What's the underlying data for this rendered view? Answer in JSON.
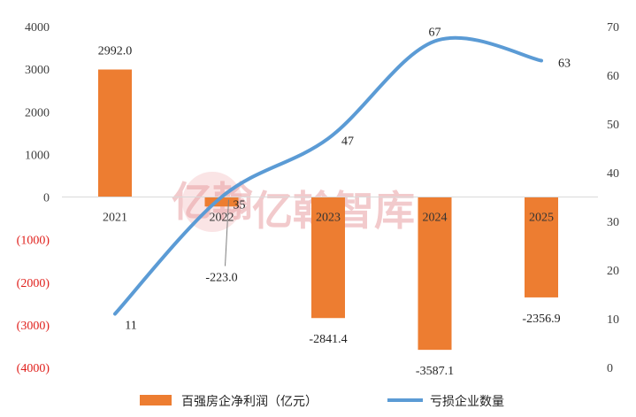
{
  "chart_data": {
    "type": "bar+line",
    "categories": [
      "2021",
      "2022",
      "2023",
      "2024",
      "2025"
    ],
    "series": [
      {
        "name": "百强房企净利润（亿元）",
        "type": "bar",
        "axis": "left",
        "values": [
          2992.0,
          -223.0,
          -2841.4,
          -3587.1,
          -2356.9
        ],
        "labels": [
          "2992.0",
          "-223.0",
          "-2841.4",
          "-3587.1",
          "-2356.9"
        ],
        "color": "#ed7d31"
      },
      {
        "name": "亏损企业数量",
        "type": "line",
        "axis": "right",
        "values": [
          11,
          35,
          47,
          67,
          63
        ],
        "labels": [
          "11",
          "35",
          "47",
          "67",
          "63"
        ],
        "color": "#5b9bd5",
        "smooth": true
      }
    ],
    "y_left": {
      "ylim": [
        -4000,
        4000
      ],
      "ticks": [
        4000,
        3000,
        2000,
        1000,
        0,
        -1000,
        -2000,
        -3000,
        -4000
      ],
      "tick_labels": [
        "4000",
        "3000",
        "2000",
        "1000",
        "0",
        "(1000)",
        "(2000)",
        "(3000)",
        "(4000)"
      ],
      "negative_color": "#e0201c"
    },
    "y_right": {
      "ylim": [
        0,
        70
      ],
      "ticks": [
        70,
        60,
        50,
        40,
        30,
        20,
        10,
        0
      ],
      "tick_labels": [
        "70",
        "60",
        "50",
        "40",
        "30",
        "20",
        "10",
        "0"
      ]
    },
    "legend_position": "bottom",
    "grid": false
  },
  "watermark": {
    "text": "亿翰智库",
    "logo_text": "亿翰"
  }
}
